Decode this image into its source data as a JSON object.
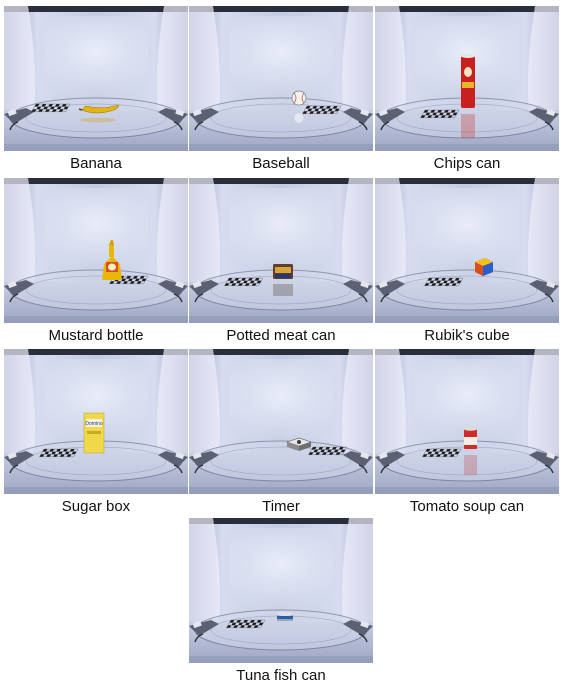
{
  "figure": {
    "panels": [
      {
        "caption": "Banana",
        "object": "banana"
      },
      {
        "caption": "Baseball",
        "object": "baseball"
      },
      {
        "caption": "Chips can",
        "object": "chips-can"
      },
      {
        "caption": "Mustard bottle",
        "object": "mustard-bottle"
      },
      {
        "caption": "Potted meat can",
        "object": "potted-meat-can"
      },
      {
        "caption": "Rubik's cube",
        "object": "rubiks-cube"
      },
      {
        "caption": "Sugar box",
        "object": "sugar-box"
      },
      {
        "caption": "Timer",
        "object": "timer"
      },
      {
        "caption": "Tomato soup can",
        "object": "tomato-soup-can"
      },
      {
        "caption": "Tuna fish can",
        "object": "tuna-fish-can"
      }
    ]
  }
}
